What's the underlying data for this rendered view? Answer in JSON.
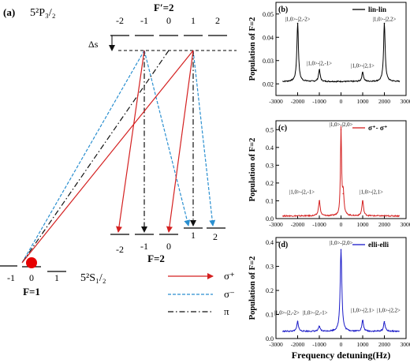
{
  "panel_a": {
    "label": "(a)",
    "upper_state": "5²P₃/₂",
    "upper_F": "F′=2",
    "upper_m": [
      "-2",
      "-1",
      "0",
      "1",
      "2"
    ],
    "delta": "Δs",
    "lower_m": [
      "-2",
      "-1",
      "0",
      "1",
      "2"
    ],
    "lower_F": "F=2",
    "ground_m": [
      "-1",
      "0",
      "1"
    ],
    "ground_F": "F=1",
    "ground_state": "5²S₁/₂",
    "legend": [
      {
        "label": "σ⁺",
        "color": "#d42020",
        "style": "solid"
      },
      {
        "label": "σ⁻",
        "color": "#2a8fd0",
        "style": "dashed"
      },
      {
        "label": "π",
        "color": "#111111",
        "style": "dashdot"
      }
    ],
    "colors": {
      "sigma_plus": "#d42020",
      "sigma_minus": "#2a8fd0",
      "pi": "#111111",
      "atom": "#e60000"
    }
  },
  "chart_data": [
    {
      "panel": "(b)",
      "type": "line",
      "legend": "lin-lin",
      "color": "#000000",
      "ylabel": "Population of F=2",
      "ylim": [
        0.015,
        0.055
      ],
      "xlim": [
        -3000,
        3000
      ],
      "yticks": [
        "0.02",
        "0.03",
        "0.04",
        "0.05"
      ],
      "xticks": [
        "-3000",
        "-2000",
        "-1000",
        "0",
        "1000",
        "2000",
        "3000"
      ],
      "peaks": [
        {
          "x": -2000,
          "y": 0.046
        },
        {
          "x": -1000,
          "y": 0.026
        },
        {
          "x": 1000,
          "y": 0.025
        },
        {
          "x": 2000,
          "y": 0.046
        }
      ],
      "baseline": 0.021,
      "annotations": [
        {
          "text": "|1,0>-|2,-2>",
          "x": -2000,
          "y": 0.047
        },
        {
          "text": "|1,0>-|2,-1>",
          "x": -1000,
          "y": 0.028
        },
        {
          "text": "|1,0>-|2,1>",
          "x": 1000,
          "y": 0.027
        },
        {
          "text": "|1,0>-|2,2>",
          "x": 2000,
          "y": 0.047
        }
      ]
    },
    {
      "panel": "(c)",
      "type": "line",
      "legend": "σ⁺- σ⁺",
      "color": "#d42020",
      "ylabel": "Population of F=2",
      "ylim": [
        0,
        0.55
      ],
      "xlim": [
        -3000,
        3000
      ],
      "yticks": [
        "0.0",
        "0.1",
        "0.2",
        "0.3",
        "0.4",
        "0.5"
      ],
      "xticks": [
        "-3000",
        "-2000",
        "-1000",
        "0",
        "1000",
        "2000",
        "3000"
      ],
      "peaks": [
        {
          "x": -1000,
          "y": 0.1
        },
        {
          "x": 0,
          "y": 0.5
        },
        {
          "x": 100,
          "y": 0.14
        },
        {
          "x": 1000,
          "y": 0.1
        }
      ],
      "baseline": 0.015,
      "annotations": [
        {
          "text": "|1,0>-|2,-1>",
          "x": -1800,
          "y": 0.14
        },
        {
          "text": "|1,0>-|2,0>",
          "x": 0,
          "y": 0.52
        },
        {
          "text": "|1,0>-|2,1>",
          "x": 1400,
          "y": 0.14
        }
      ]
    },
    {
      "panel": "(d)",
      "type": "line",
      "legend": "elli-elli",
      "color": "#1a1ac8",
      "ylabel": "Population of F=2",
      "xlabel": "Frequency detuning(Hz)",
      "ylim": [
        0,
        0.42
      ],
      "xlim": [
        -3000,
        3000
      ],
      "yticks": [
        "0.0",
        "0.1",
        "0.2",
        "0.3",
        "0.4"
      ],
      "xticks": [
        "-3000",
        "-2000",
        "-1000",
        "0",
        "1000",
        "2000",
        "3000"
      ],
      "peaks": [
        {
          "x": -2000,
          "y": 0.07
        },
        {
          "x": -1000,
          "y": 0.05
        },
        {
          "x": 0,
          "y": 0.37
        },
        {
          "x": 1000,
          "y": 0.075
        },
        {
          "x": 2000,
          "y": 0.07
        }
      ],
      "baseline": 0.03,
      "annotations": [
        {
          "text": "|1,0>-|2,-2>",
          "x": -2500,
          "y": 0.1
        },
        {
          "text": "|1,0>-|2,-1>",
          "x": -1200,
          "y": 0.1
        },
        {
          "text": "|1,0>-|2,0>",
          "x": 0,
          "y": 0.39
        },
        {
          "text": "|1,0>-|2,1>",
          "x": 1000,
          "y": 0.11
        },
        {
          "text": "|1,0>-|2,2>",
          "x": 2200,
          "y": 0.11
        }
      ]
    }
  ]
}
